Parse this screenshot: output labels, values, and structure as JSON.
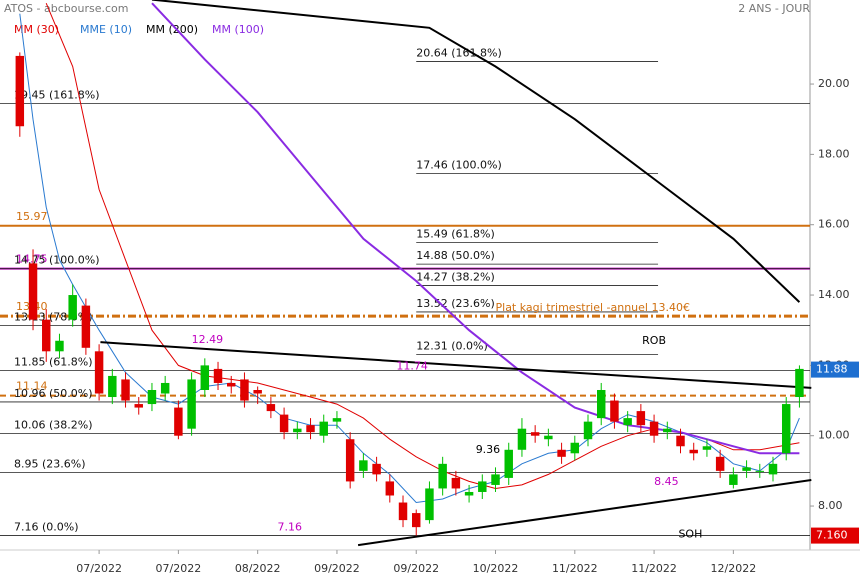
{
  "chart_data": {
    "type": "candlestick",
    "title": "ATOS - abcbourse.com",
    "subtitle": "2 ANS - JOUR",
    "xlim": [
      -1.5,
      59.8
    ],
    "ylim": [
      6.75,
      22.39
    ],
    "xticks": [
      {
        "value": 6,
        "label": "07/2022"
      },
      {
        "value": 12,
        "label": "07/2022"
      },
      {
        "value": 18,
        "label": "08/2022"
      },
      {
        "value": 24,
        "label": "09/2022"
      },
      {
        "value": 30,
        "label": "09/2022"
      },
      {
        "value": 36,
        "label": "10/2022"
      },
      {
        "value": 42,
        "label": "11/2022"
      },
      {
        "value": 48,
        "label": "11/2022"
      },
      {
        "value": 54,
        "label": "12/2022"
      }
    ],
    "yticks": [
      {
        "value": 8,
        "label": "8.00"
      },
      {
        "value": 10,
        "label": "10.00"
      },
      {
        "value": 12,
        "label": "12.00"
      },
      {
        "value": 14,
        "label": "14.00"
      },
      {
        "value": 16,
        "label": "16.00"
      },
      {
        "value": 18,
        "label": "18.00"
      },
      {
        "value": 20,
        "label": "20.00"
      }
    ],
    "up_color": "#00c000",
    "down_color": "#e00000",
    "candles": {
      "open": [
        20.8,
        14.9,
        13.3,
        12.4,
        13.3,
        13.7,
        12.4,
        11.1,
        11.6,
        10.9,
        10.9,
        11.2,
        10.8,
        10.2,
        11.3,
        11.9,
        11.5,
        11.6,
        11.3,
        10.9,
        10.6,
        10.1,
        10.3,
        10.0,
        10.4,
        9.9,
        9.0,
        9.2,
        8.7,
        8.1,
        7.8,
        7.6,
        8.5,
        8.8,
        8.3,
        8.4,
        8.6,
        8.8,
        9.6,
        10.1,
        9.9,
        9.6,
        9.5,
        9.9,
        10.5,
        11.0,
        10.3,
        10.7,
        10.4,
        10.1,
        10.0,
        9.6,
        9.6,
        9.4,
        8.6,
        9.0,
        9.0,
        8.9,
        9.5,
        11.1
      ],
      "high": [
        20.9,
        15.3,
        13.6,
        12.9,
        14.3,
        13.9,
        12.6,
        11.9,
        11.8,
        11.1,
        11.5,
        11.7,
        11.0,
        11.8,
        12.2,
        12.1,
        11.7,
        11.8,
        11.4,
        11.1,
        10.8,
        10.4,
        10.5,
        10.6,
        10.7,
        10.1,
        9.5,
        9.4,
        8.9,
        8.3,
        7.9,
        8.7,
        9.4,
        9.0,
        8.6,
        8.9,
        9.1,
        9.8,
        10.5,
        10.3,
        10.2,
        9.8,
        10.0,
        10.6,
        11.5,
        11.2,
        10.7,
        10.9,
        10.6,
        10.4,
        10.2,
        9.8,
        9.9,
        9.6,
        9.1,
        9.3,
        9.2,
        9.4,
        11.1,
        12.0
      ],
      "low": [
        18.5,
        13.0,
        12.1,
        12.2,
        13.1,
        12.3,
        11.0,
        10.9,
        10.8,
        10.6,
        10.7,
        11.0,
        9.9,
        10.0,
        11.1,
        11.3,
        11.2,
        10.8,
        10.9,
        10.5,
        9.9,
        9.9,
        9.9,
        9.8,
        10.2,
        8.5,
        8.8,
        8.7,
        8.1,
        7.4,
        7.16,
        7.5,
        8.3,
        8.3,
        8.1,
        8.2,
        8.4,
        8.6,
        9.4,
        9.8,
        9.7,
        9.2,
        9.3,
        9.7,
        10.3,
        10.2,
        10.1,
        10.1,
        9.8,
        9.9,
        9.5,
        9.3,
        9.4,
        8.8,
        8.5,
        8.8,
        8.8,
        8.7,
        9.3,
        10.8
      ],
      "close": [
        18.8,
        13.3,
        12.4,
        12.7,
        14.0,
        12.5,
        11.2,
        11.7,
        11.0,
        10.8,
        11.3,
        11.5,
        10.0,
        11.6,
        12.0,
        11.5,
        11.4,
        11.0,
        11.2,
        10.7,
        10.1,
        10.2,
        10.1,
        10.4,
        10.5,
        8.7,
        9.3,
        8.9,
        8.3,
        7.6,
        7.4,
        8.5,
        9.2,
        8.5,
        8.4,
        8.7,
        8.9,
        9.6,
        10.2,
        10.0,
        10.0,
        9.4,
        9.8,
        10.4,
        11.3,
        10.4,
        10.5,
        10.3,
        10.0,
        10.2,
        9.7,
        9.5,
        9.7,
        9.0,
        8.9,
        9.1,
        9.0,
        9.2,
        10.9,
        11.9
      ]
    },
    "series": [
      {
        "name": "MM (30)",
        "color": "#e00000",
        "x": [
          2,
          4,
          6,
          8,
          10,
          12,
          14,
          16,
          18,
          20,
          22,
          24,
          26,
          28,
          30,
          32,
          34,
          36,
          38,
          40,
          42,
          44,
          46,
          48,
          50,
          52,
          54,
          56,
          59
        ],
        "values": [
          22.3,
          20.5,
          17,
          15,
          13,
          12,
          11.7,
          11.6,
          11.5,
          11.3,
          11.1,
          10.9,
          10.5,
          9.9,
          9.4,
          9.0,
          8.7,
          8.5,
          8.6,
          8.9,
          9.3,
          9.7,
          10.0,
          10.2,
          10.1,
          9.9,
          9.6,
          9.6,
          9.8
        ]
      },
      {
        "name": "MME (10)",
        "color": "#2a7ad0",
        "x": [
          0,
          1,
          2,
          3,
          4,
          6,
          8,
          10,
          12,
          14,
          16,
          18,
          20,
          22,
          24,
          26,
          28,
          30,
          32,
          34,
          36,
          38,
          40,
          42,
          44,
          46,
          48,
          50,
          52,
          54,
          56,
          58,
          59
        ],
        "values": [
          22,
          19,
          16.5,
          15,
          14.3,
          13,
          11.8,
          11.1,
          10.9,
          11.4,
          11.5,
          11.1,
          10.5,
          10.3,
          10.3,
          9.5,
          8.9,
          8.1,
          8.2,
          8.5,
          8.7,
          9.2,
          9.5,
          9.6,
          10.2,
          10.6,
          10.4,
          10.1,
          9.8,
          9.2,
          9.0,
          9.6,
          10.5
        ]
      },
      {
        "name": "MM (200)",
        "color": "#000000",
        "x": [
          10,
          31,
          36,
          42,
          48,
          54,
          59
        ],
        "values": [
          22.4,
          21.6,
          20.5,
          19.0,
          17.3,
          15.6,
          13.8
        ]
      },
      {
        "name": "MM (100)",
        "color": "#8a2be2",
        "x": [
          10,
          14,
          18,
          22,
          26,
          30,
          34,
          38,
          42,
          46,
          50,
          54,
          56,
          59
        ],
        "values": [
          22.3,
          20.7,
          19.2,
          17.4,
          15.6,
          14.4,
          13.0,
          11.8,
          10.8,
          10.3,
          10.1,
          9.7,
          9.5,
          9.5
        ]
      }
    ],
    "trendlines": [
      {
        "name": "ROB",
        "x": [
          6.1,
          59.9
        ],
        "values": [
          12.66,
          11.36
        ]
      },
      {
        "name": "SOH",
        "x": [
          25.6,
          59.9
        ],
        "values": [
          6.89,
          8.74
        ]
      }
    ],
    "fib_levels_left": [
      {
        "value": 19.45,
        "label": "19.45  (161.8%)"
      },
      {
        "value": 14.75,
        "label": "14.75  (100.0%)"
      },
      {
        "value": 13.13,
        "label": "13.13  (78.6%)"
      },
      {
        "value": 11.85,
        "label": "11.85  (61.8%)"
      },
      {
        "value": 10.96,
        "label": "10.96  (50.0%)"
      },
      {
        "value": 10.06,
        "label": "10.06  (38.2%)"
      },
      {
        "value": 8.95,
        "label": "8.95  (23.6%)"
      },
      {
        "value": 7.16,
        "label": "7.16  (0.0%)"
      }
    ],
    "fib_levels_right": [
      {
        "value": 20.64,
        "label": "20.64  (161.8%)"
      },
      {
        "value": 17.46,
        "label": "17.46  (100.0%)"
      },
      {
        "value": 15.49,
        "label": "15.49  (61.8%)"
      },
      {
        "value": 14.88,
        "label": "14.88  (50.0%)"
      },
      {
        "value": 14.27,
        "label": "14.27  (38.2%)"
      },
      {
        "value": 13.52,
        "label": "13.52  (23.6%)"
      },
      {
        "value": 12.31,
        "label": "12.31  (0.0%)"
      }
    ],
    "levels": [
      {
        "value": 15.97,
        "label": "15.97",
        "color": "#d07010"
      },
      {
        "value": 14.75,
        "label": "14.75",
        "color": "#c000c0"
      },
      {
        "value": 13.4,
        "label": "13.40",
        "color": "#d07010"
      },
      {
        "value": 11.14,
        "label": "11.14",
        "color": "#d07010"
      }
    ],
    "annotations": [
      {
        "x": 13,
        "value": 12.49,
        "label": "12.49",
        "color": "#c000c0"
      },
      {
        "x": 28.5,
        "value": 11.74,
        "label": "11.74",
        "color": "#c000c0"
      },
      {
        "x": 34.5,
        "value": 9.36,
        "label": "9.36",
        "color": "#000000"
      },
      {
        "x": 48,
        "value": 8.45,
        "label": "8.45",
        "color": "#c000c0"
      },
      {
        "x": 19.5,
        "value": 7.16,
        "label": "7.16",
        "color": "#c000c0"
      },
      {
        "x": 36,
        "value": 13.4,
        "label": "Plat kagi trimestriel -annuel 13.40€",
        "color": "#d07010"
      }
    ],
    "price_tags": [
      {
        "value": 11.88,
        "label": "11.88",
        "color": "#1e6fd0"
      },
      {
        "value": 7.16,
        "label": "7.160",
        "color": "#e00000"
      }
    ]
  }
}
